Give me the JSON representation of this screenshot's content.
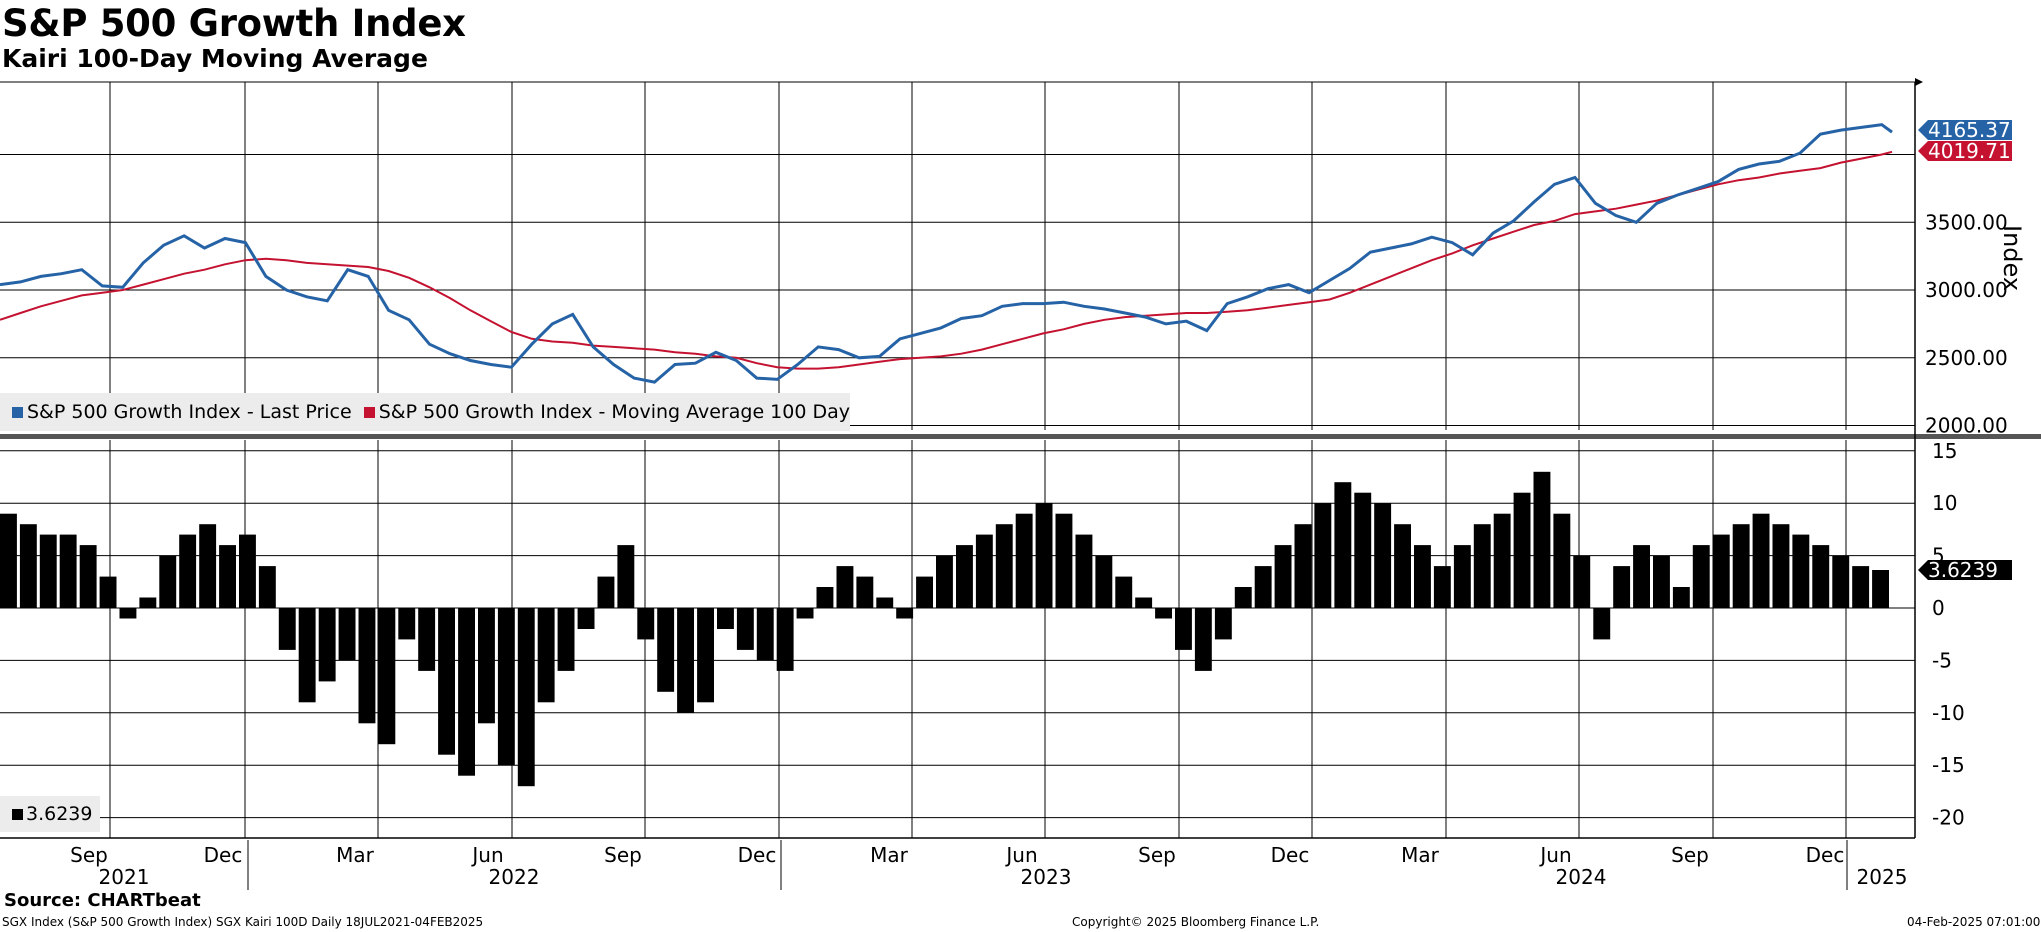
{
  "header": {
    "title": "S&P 500 Growth Index",
    "subtitle": "Kairi 100-Day Moving Average"
  },
  "footer": {
    "source": "Source: CHARTbeat",
    "left_note": "SGX Index (S&P 500 Growth Index) SGX Kairi 100D  Daily 18JUL2021-04FEB2025",
    "copyright": "Copyright© 2025 Bloomberg Finance L.P.",
    "timestamp": "04-Feb-2025 07:01:00"
  },
  "colors": {
    "price": "#2563a6",
    "ma": "#c41230",
    "kairi": "#000000",
    "grid": "#000000"
  },
  "chart_data": [
    {
      "type": "line",
      "ylabel": "Index",
      "ylim": [
        2000,
        4500
      ],
      "yticks": [
        "2000.00",
        "2500.00",
        "3000.00",
        "3500.00"
      ],
      "last_price_label": "4165.37",
      "last_ma_label": "4019.71",
      "legend": {
        "placement": "bottom-left",
        "price": "S&P 500 Growth Index - Last Price",
        "ma": "S&P 500 Growth Index - Moving Average 100 Day"
      },
      "x": [
        "2021-07-19",
        "2021-08-02",
        "2021-08-16",
        "2021-08-30",
        "2021-09-13",
        "2021-09-27",
        "2021-10-11",
        "2021-10-25",
        "2021-11-08",
        "2021-11-22",
        "2021-12-06",
        "2021-12-20",
        "2022-01-03",
        "2022-01-17",
        "2022-01-31",
        "2022-02-14",
        "2022-02-28",
        "2022-03-14",
        "2022-03-28",
        "2022-04-11",
        "2022-04-25",
        "2022-05-09",
        "2022-05-23",
        "2022-06-06",
        "2022-06-20",
        "2022-07-04",
        "2022-07-18",
        "2022-08-01",
        "2022-08-15",
        "2022-08-29",
        "2022-09-12",
        "2022-09-26",
        "2022-10-10",
        "2022-10-24",
        "2022-11-07",
        "2022-11-21",
        "2022-12-05",
        "2022-12-19",
        "2023-01-02",
        "2023-01-16",
        "2023-01-30",
        "2023-02-13",
        "2023-02-27",
        "2023-03-13",
        "2023-03-27",
        "2023-04-10",
        "2023-04-24",
        "2023-05-08",
        "2023-05-22",
        "2023-06-05",
        "2023-06-19",
        "2023-07-03",
        "2023-07-17",
        "2023-07-31",
        "2023-08-14",
        "2023-08-28",
        "2023-09-11",
        "2023-09-25",
        "2023-10-09",
        "2023-10-23",
        "2023-11-06",
        "2023-11-20",
        "2023-12-04",
        "2023-12-18",
        "2024-01-01",
        "2024-01-15",
        "2024-01-29",
        "2024-02-12",
        "2024-02-26",
        "2024-03-11",
        "2024-03-25",
        "2024-04-08",
        "2024-04-22",
        "2024-05-06",
        "2024-05-20",
        "2024-06-03",
        "2024-06-17",
        "2024-07-01",
        "2024-07-15",
        "2024-07-29",
        "2024-08-12",
        "2024-08-26",
        "2024-09-09",
        "2024-09-23",
        "2024-10-07",
        "2024-10-21",
        "2024-11-04",
        "2024-11-18",
        "2024-12-02",
        "2024-12-16",
        "2024-12-30",
        "2025-01-13",
        "2025-01-27",
        "2025-02-03"
      ],
      "series": [
        {
          "name": "S&P 500 Growth Index - Last Price",
          "values": [
            3040,
            3060,
            3100,
            3120,
            3150,
            3030,
            3020,
            3200,
            3330,
            3400,
            3310,
            3380,
            3350,
            3100,
            3000,
            2950,
            2920,
            3150,
            3100,
            2850,
            2780,
            2600,
            2530,
            2480,
            2450,
            2430,
            2600,
            2750,
            2820,
            2580,
            2450,
            2350,
            2320,
            2450,
            2460,
            2540,
            2480,
            2350,
            2340,
            2450,
            2580,
            2560,
            2500,
            2510,
            2640,
            2680,
            2720,
            2790,
            2810,
            2880,
            2900,
            2900,
            2910,
            2880,
            2860,
            2830,
            2800,
            2750,
            2770,
            2700,
            2900,
            2950,
            3010,
            3040,
            2980,
            3070,
            3160,
            3280,
            3310,
            3340,
            3390,
            3350,
            3260,
            3420,
            3510,
            3650,
            3780,
            3830,
            3640,
            3550,
            3500,
            3640,
            3700,
            3750,
            3800,
            3890,
            3930,
            3950,
            4010,
            4150,
            4180,
            4200,
            4220,
            4165.37
          ]
        },
        {
          "name": "S&P 500 Growth Index - Moving Average 100 Day",
          "values": [
            2780,
            2830,
            2880,
            2920,
            2960,
            2980,
            3000,
            3040,
            3080,
            3120,
            3150,
            3190,
            3220,
            3230,
            3220,
            3200,
            3190,
            3180,
            3170,
            3140,
            3090,
            3020,
            2940,
            2850,
            2770,
            2690,
            2640,
            2620,
            2610,
            2590,
            2580,
            2570,
            2560,
            2540,
            2530,
            2510,
            2500,
            2460,
            2430,
            2420,
            2420,
            2430,
            2450,
            2470,
            2490,
            2500,
            2510,
            2530,
            2560,
            2600,
            2640,
            2680,
            2710,
            2750,
            2780,
            2800,
            2810,
            2820,
            2830,
            2830,
            2840,
            2850,
            2870,
            2890,
            2910,
            2930,
            2980,
            3040,
            3100,
            3160,
            3220,
            3270,
            3330,
            3380,
            3430,
            3480,
            3510,
            3560,
            3580,
            3600,
            3630,
            3660,
            3700,
            3740,
            3780,
            3810,
            3830,
            3860,
            3880,
            3900,
            3940,
            3970,
            4000,
            4019.71
          ]
        }
      ]
    },
    {
      "type": "bar",
      "ylim": [
        -20,
        15
      ],
      "yticks": [
        "15",
        "10",
        "5",
        "0",
        "-5",
        "-10",
        "-15",
        "-20"
      ],
      "last_value_label": "3.6239",
      "legend": {
        "placement": "bottom-left",
        "label": "3.6239"
      },
      "x_month_labels": [
        "Sep",
        "Dec",
        "Mar",
        "Jun",
        "Sep",
        "Dec",
        "Mar",
        "Jun",
        "Sep",
        "Dec",
        "Mar",
        "Jun",
        "Sep",
        "Dec"
      ],
      "x_year_labels": [
        "2021",
        "2022",
        "2023",
        "2024",
        "2025"
      ],
      "series": [
        {
          "name": "",
          "values": [
            9,
            8,
            7,
            7,
            6,
            3,
            -1,
            1,
            5,
            7,
            8,
            6,
            7,
            4,
            -4,
            -9,
            -7,
            -5,
            -11,
            -13,
            -3,
            -6,
            -14,
            -16,
            -11,
            -15,
            -17,
            -9,
            -6,
            -2,
            3,
            6,
            -3,
            -8,
            -10,
            -9,
            -2,
            -4,
            -5,
            -6,
            -1,
            2,
            4,
            3,
            1,
            -1,
            3,
            5,
            6,
            7,
            8,
            9,
            10,
            9,
            7,
            5,
            3,
            1,
            -1,
            -4,
            -6,
            -3,
            2,
            4,
            6,
            8,
            10,
            12,
            11,
            10,
            8,
            6,
            4,
            6,
            8,
            9,
            11,
            13,
            9,
            5,
            -3,
            4,
            6,
            5,
            2,
            6,
            7,
            8,
            9,
            8,
            7,
            6,
            5,
            4,
            3.6239
          ]
        }
      ]
    }
  ]
}
